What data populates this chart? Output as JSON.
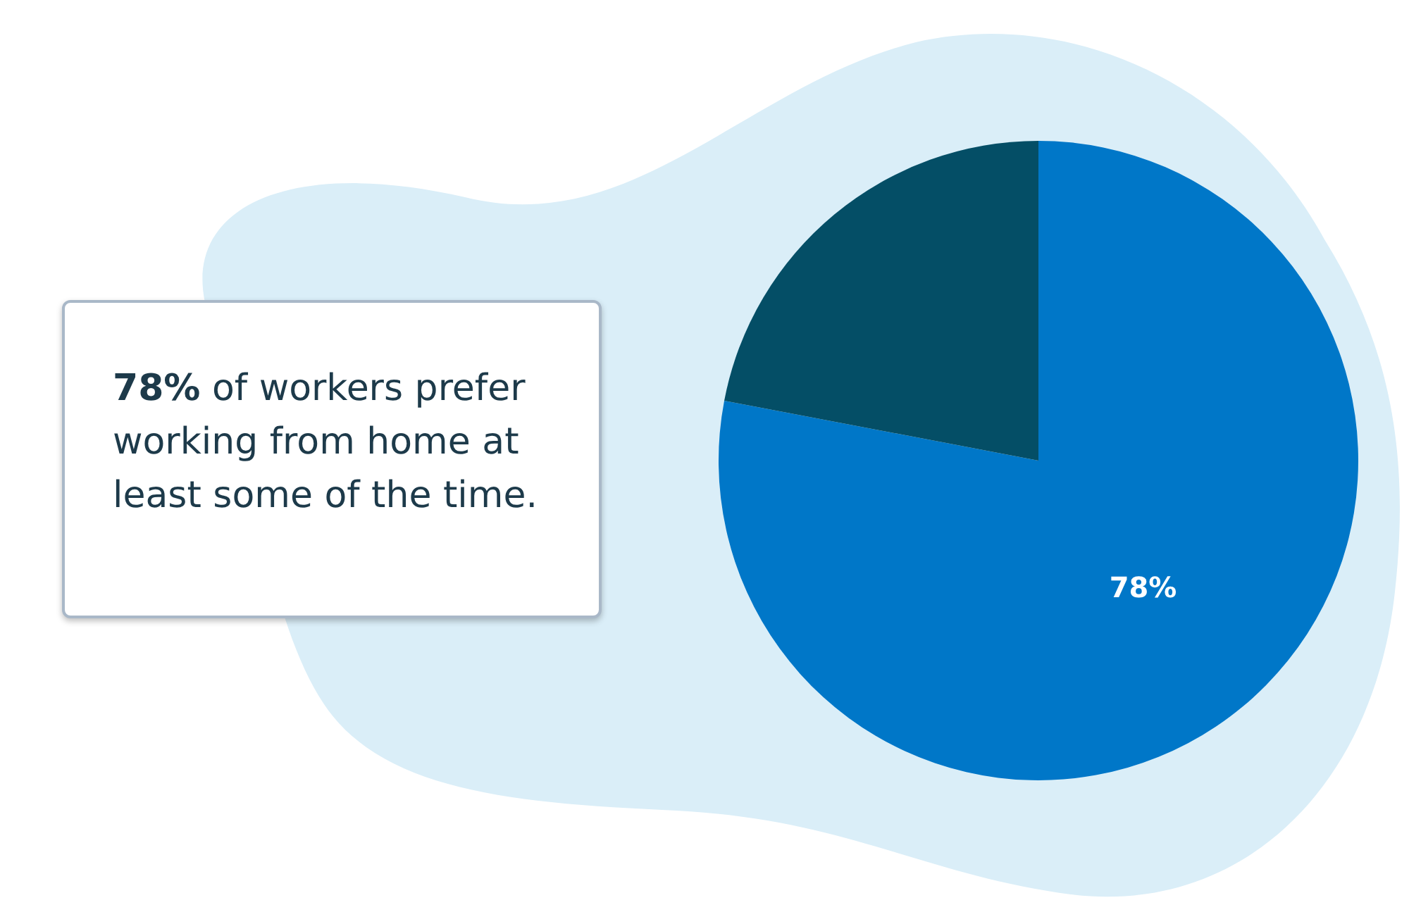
{
  "chart_data": {
    "type": "pie",
    "categories": [
      null,
      null
    ],
    "values": [
      78,
      22
    ],
    "colors": [
      "#0077c8",
      "#044e66"
    ],
    "value_labels": [
      "78%",
      null
    ],
    "annotations": [
      "78% of workers prefer working from home at least some of the time."
    ]
  }
}
